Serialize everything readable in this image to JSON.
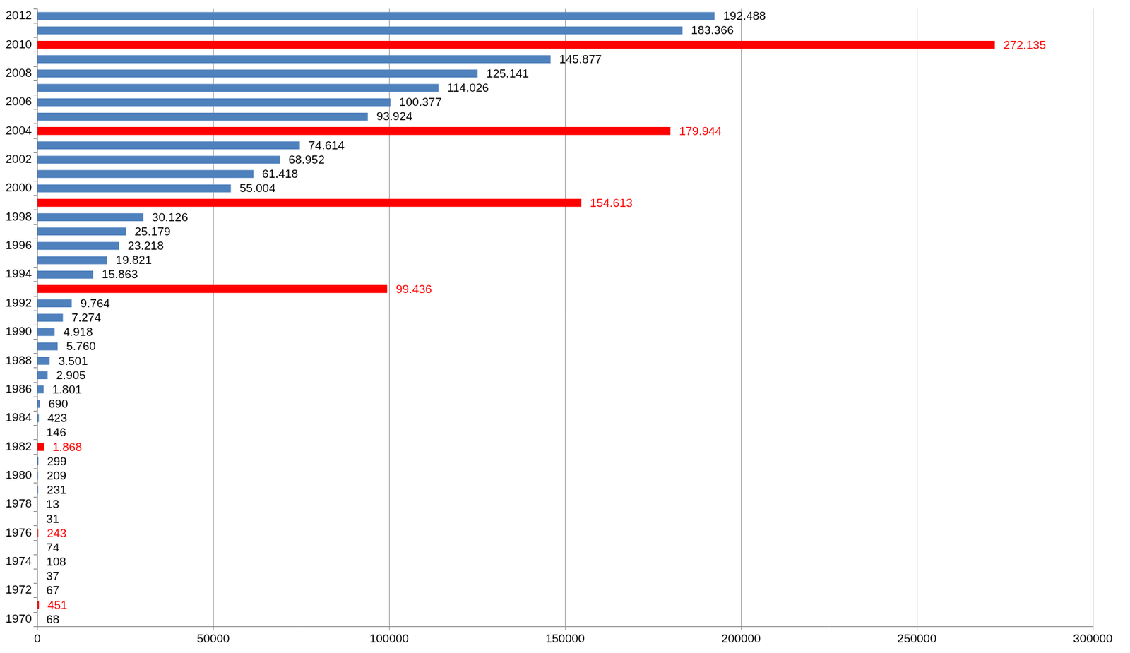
{
  "chart_data": {
    "type": "bar",
    "orientation": "horizontal",
    "categories": [
      "1970",
      null,
      "1972",
      null,
      "1974",
      null,
      "1976",
      null,
      "1978",
      null,
      "1980",
      null,
      "1982",
      null,
      "1984",
      null,
      "1986",
      null,
      "1988",
      null,
      "1990",
      null,
      "1992",
      null,
      "1994",
      null,
      "1996",
      null,
      "1998",
      null,
      "2000",
      null,
      "2002",
      null,
      "2004",
      null,
      "2006",
      null,
      "2008",
      null,
      "2010",
      null,
      "2012"
    ],
    "values": [
      68,
      451,
      67,
      37,
      108,
      74,
      243,
      31,
      13,
      231,
      209,
      299,
      1868,
      146,
      423,
      690,
      1801,
      2905,
      3501,
      5760,
      4918,
      7274,
      9764,
      99436,
      15863,
      19821,
      23218,
      25179,
      30126,
      154613,
      55004,
      61418,
      68952,
      74614,
      179944,
      93924,
      100377,
      114026,
      125141,
      145877,
      272135,
      183366,
      192488
    ],
    "value_labels": [
      "68",
      "451",
      "67",
      "37",
      "108",
      "74",
      "243",
      "31",
      "13",
      "231",
      "209",
      "299",
      "1.868",
      "146",
      "423",
      "690",
      "1.801",
      "2.905",
      "3.501",
      "5.760",
      "4.918",
      "7.274",
      "9.764",
      "99.436",
      "15.863",
      "19.821",
      "23.218",
      "25.179",
      "30.126",
      "154.613",
      "55.004",
      "61.418",
      "68.952",
      "74.614",
      "179.944",
      "93.924",
      "100.377",
      "114.026",
      "125.141",
      "145.877",
      "272.135",
      "183.366",
      "192.488"
    ],
    "colors": [
      "#4f81bd",
      "#ff0000",
      "#4f81bd",
      "#4f81bd",
      "#4f81bd",
      "#4f81bd",
      "#ff0000",
      "#4f81bd",
      "#4f81bd",
      "#4f81bd",
      "#4f81bd",
      "#4f81bd",
      "#ff0000",
      "#4f81bd",
      "#4f81bd",
      "#4f81bd",
      "#4f81bd",
      "#4f81bd",
      "#4f81bd",
      "#4f81bd",
      "#4f81bd",
      "#4f81bd",
      "#4f81bd",
      "#ff0000",
      "#4f81bd",
      "#4f81bd",
      "#4f81bd",
      "#4f81bd",
      "#4f81bd",
      "#ff0000",
      "#4f81bd",
      "#4f81bd",
      "#4f81bd",
      "#4f81bd",
      "#ff0000",
      "#4f81bd",
      "#4f81bd",
      "#4f81bd",
      "#4f81bd",
      "#4f81bd",
      "#ff0000",
      "#4f81bd",
      "#4f81bd"
    ],
    "xlim": [
      0,
      300000
    ],
    "xticks": [
      0,
      50000,
      100000,
      150000,
      200000,
      250000,
      300000
    ],
    "grid": true,
    "data_labels": true,
    "tick_labels": true
  }
}
